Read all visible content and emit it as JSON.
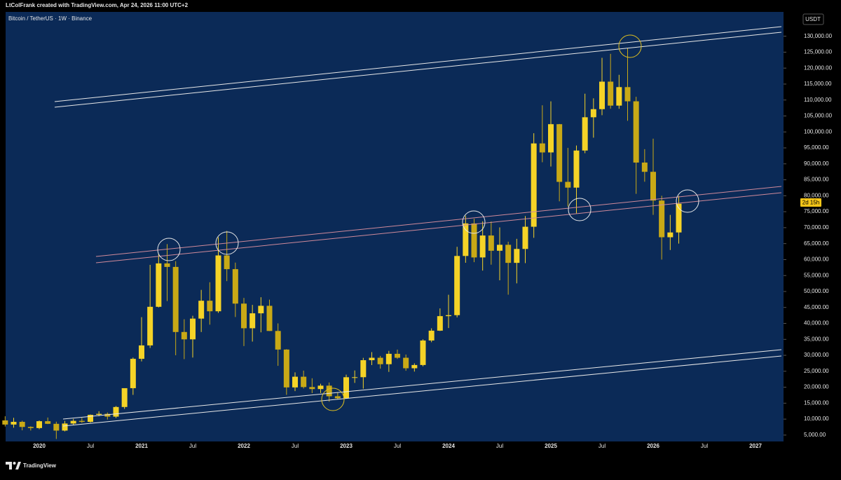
{
  "header": {
    "credit": "LtColFrank created with TradingView.com, Apr 24, 2026 11:00 UTC+2",
    "symbol": "Bitcoin / TetherUS · 1W · Binance",
    "currency": "USDT",
    "countdown": "2d 15h",
    "brand": "TradingView"
  },
  "chart_data": {
    "type": "candlestick",
    "categories": [
      null,
      null,
      null,
      null,
      "2020",
      null,
      null,
      null,
      null,
      null,
      "Jul",
      null,
      null,
      null,
      null,
      null,
      "2021",
      null,
      null,
      null,
      null,
      null,
      "Jul",
      null,
      null,
      null,
      null,
      null,
      "2022",
      null,
      null,
      null,
      null,
      null,
      "Jul",
      null,
      null,
      null,
      null,
      null,
      "2023",
      null,
      null,
      null,
      null,
      null,
      "Jul",
      null,
      null,
      null,
      null,
      null,
      "2024",
      null,
      null,
      null,
      null,
      null,
      "Jul",
      null,
      null,
      null,
      null,
      null,
      "2025",
      null,
      null,
      null,
      null,
      null,
      "Jul",
      null,
      null,
      null,
      null,
      null,
      "2026",
      null,
      null,
      null,
      null,
      null,
      "Jul",
      null,
      null,
      null,
      null,
      null,
      "2027",
      null,
      null
    ],
    "open": [
      9600,
      8300,
      9150,
      7550,
      7200,
      9350,
      8530,
      6410,
      8620,
      9450,
      9140,
      11350,
      11650,
      10780,
      13800,
      19700,
      28900,
      33100,
      45200,
      58800,
      57700,
      37300,
      35000,
      41500,
      47100,
      43800,
      61300,
      57000,
      46200,
      38480,
      43160,
      45510,
      37630,
      31800,
      19940,
      23290,
      20050,
      19420,
      20490,
      17160,
      16540,
      23130,
      23140,
      28470,
      29230,
      27210,
      30470,
      29230,
      25940,
      26960,
      34640,
      37720,
      42280,
      42580,
      61130,
      71330,
      60670,
      67540,
      62770,
      64630,
      58970,
      63330,
      70290,
      96400,
      93580,
      102430,
      84350,
      82550,
      94170,
      104600,
      107140,
      115760,
      108250,
      114050,
      109600,
      90400,
      87500,
      78500,
      67000,
      68500,
      null,
      null,
      null,
      null,
      null,
      null,
      null,
      null,
      null,
      null,
      null
    ],
    "high": [
      10900,
      10400,
      9500,
      7750,
      9580,
      10500,
      9200,
      9460,
      10070,
      10380,
      11450,
      12470,
      12070,
      14100,
      19500,
      29300,
      41950,
      58350,
      61800,
      64850,
      59500,
      41300,
      42400,
      50500,
      52900,
      67000,
      69000,
      59050,
      47990,
      45800,
      48200,
      47450,
      40000,
      31900,
      24670,
      25200,
      22800,
      21080,
      21480,
      18390,
      23950,
      25250,
      29200,
      31000,
      29820,
      31390,
      31800,
      30240,
      27480,
      35000,
      38450,
      44700,
      48970,
      64000,
      73780,
      72800,
      71980,
      71950,
      70080,
      65600,
      66500,
      73620,
      99590,
      108350,
      109590,
      102500,
      95000,
      95760,
      111980,
      110530,
      123220,
      124470,
      117900,
      126200,
      111000,
      94600,
      97900,
      80000,
      74000,
      80000,
      null,
      null,
      null,
      null,
      null,
      null,
      null,
      null,
      null,
      null,
      null
    ],
    "low": [
      7700,
      7300,
      6500,
      6430,
      6850,
      8450,
      3780,
      6150,
      8100,
      8830,
      8900,
      10900,
      9880,
      10370,
      13200,
      17600,
      28100,
      32300,
      45000,
      47000,
      30000,
      28800,
      29300,
      37300,
      39600,
      43300,
      53250,
      42000,
      32900,
      34300,
      37200,
      37600,
      26700,
      17600,
      18780,
      19600,
      18150,
      18190,
      15480,
      16260,
      16500,
      21350,
      19550,
      26940,
      25810,
      24800,
      28860,
      25160,
      24900,
      26540,
      34100,
      37620,
      38550,
      41880,
      59000,
      59190,
      56550,
      58400,
      53500,
      49000,
      52550,
      58900,
      66830,
      90500,
      89160,
      78260,
      76600,
      74500,
      93340,
      98200,
      105250,
      107270,
      107250,
      103500,
      80600,
      84400,
      74000,
      60000,
      63000,
      65000,
      null,
      null,
      null,
      null,
      null,
      null,
      null,
      null,
      null,
      null,
      null
    ],
    "close": [
      8300,
      9150,
      7550,
      7200,
      9350,
      8530,
      6410,
      8620,
      9450,
      9140,
      11350,
      11650,
      10780,
      13800,
      19700,
      28900,
      33100,
      45200,
      58800,
      57700,
      37300,
      35000,
      41500,
      47100,
      43800,
      61300,
      57000,
      46200,
      38480,
      43160,
      45510,
      37630,
      31800,
      19940,
      23290,
      20050,
      19420,
      20490,
      17160,
      16540,
      23130,
      23140,
      28470,
      29230,
      27210,
      30470,
      29230,
      25940,
      26960,
      34640,
      37720,
      42280,
      42580,
      61130,
      71330,
      60670,
      67540,
      62770,
      64630,
      58970,
      63330,
      70290,
      96400,
      93580,
      102430,
      84350,
      82550,
      94170,
      104600,
      107140,
      115760,
      108250,
      114050,
      109600,
      90400,
      87500,
      78500,
      67000,
      68500,
      77500,
      null,
      null,
      null,
      null,
      null,
      null,
      null,
      null,
      null,
      null,
      null
    ],
    "up_color": "#f5d327",
    "down_color": "#c9a916",
    "ylim": [
      3000,
      133000
    ],
    "yticks": [
      {
        "value": 5000,
        "label": "5,000.00"
      },
      {
        "value": 10000,
        "label": "10,000.00"
      },
      {
        "value": 15000,
        "label": "15,000.00"
      },
      {
        "value": 20000,
        "label": "20,000.00"
      },
      {
        "value": 25000,
        "label": "25,000.00"
      },
      {
        "value": 30000,
        "label": "30,000.00"
      },
      {
        "value": 35000,
        "label": "35,000.00"
      },
      {
        "value": 40000,
        "label": "40,000.00"
      },
      {
        "value": 45000,
        "label": "45,000.00"
      },
      {
        "value": 50000,
        "label": "50,000.00"
      },
      {
        "value": 55000,
        "label": "55,000.00"
      },
      {
        "value": 60000,
        "label": "60,000.00"
      },
      {
        "value": 65000,
        "label": "65,000.00"
      },
      {
        "value": 70000,
        "label": "70,000.00"
      },
      {
        "value": 75000,
        "label": "75,000.00"
      },
      {
        "value": 80000,
        "label": "80,000.00"
      },
      {
        "value": 85000,
        "label": "85,000.00"
      },
      {
        "value": 90000,
        "label": "90,000.00"
      },
      {
        "value": 95000,
        "label": "95,000.00"
      },
      {
        "value": 100000,
        "label": "100,000.00"
      },
      {
        "value": 105000,
        "label": "105,000.00"
      },
      {
        "value": 110000,
        "label": "110,000.00"
      },
      {
        "value": 115000,
        "label": "115,000.00"
      },
      {
        "value": 120000,
        "label": "120,000.00"
      },
      {
        "value": 125000,
        "label": "125,000.00"
      },
      {
        "value": 130000,
        "label": "130,000.00"
      }
    ],
    "grid": false
  }
}
